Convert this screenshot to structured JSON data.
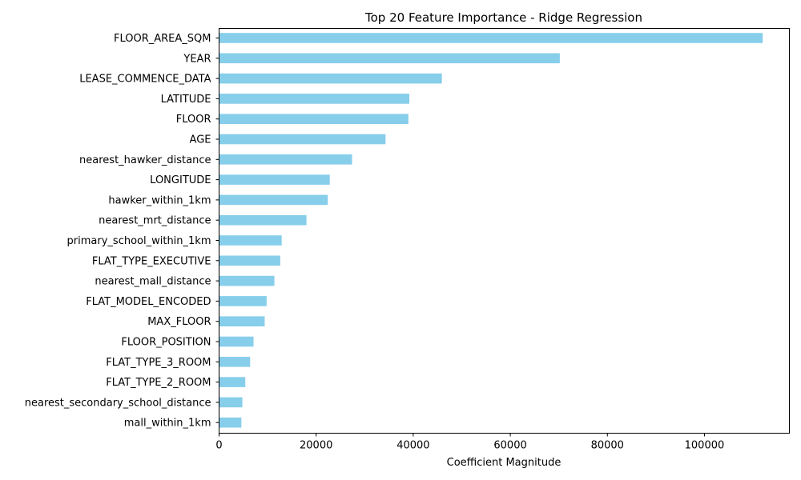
{
  "chart_data": {
    "type": "bar",
    "orientation": "horizontal",
    "title": "Top 20 Feature Importance - Ridge Regression",
    "xlabel": "Coefficient Magnitude",
    "ylabel": "",
    "xlim": [
      0,
      117500
    ],
    "xticks": [
      0,
      20000,
      40000,
      60000,
      80000,
      100000
    ],
    "xtick_labels": [
      "0",
      "20000",
      "40000",
      "60000",
      "80000",
      "100000"
    ],
    "grid": false,
    "bar_color": "#87ceeb",
    "categories": [
      "FLOOR_AREA_SQM",
      "YEAR",
      "LEASE_COMMENCE_DATA",
      "LATITUDE",
      "FLOOR",
      "AGE",
      "nearest_hawker_distance",
      "LONGITUDE",
      "hawker_within_1km",
      "nearest_mrt_distance",
      "primary_school_within_1km",
      "FLAT_TYPE_EXECUTIVE",
      "nearest_mall_distance",
      "FLAT_MODEL_ENCODED",
      "MAX_FLOOR",
      "FLOOR_POSITION",
      "FLAT_TYPE_3_ROOM",
      "FLAT_TYPE_2_ROOM",
      "nearest_secondary_school_distance",
      "mall_within_1km"
    ],
    "values": [
      112000,
      70200,
      45900,
      39200,
      39000,
      34300,
      27400,
      22800,
      22400,
      18000,
      12900,
      12600,
      11400,
      9800,
      9400,
      7100,
      6400,
      5400,
      4800,
      4600
    ]
  }
}
